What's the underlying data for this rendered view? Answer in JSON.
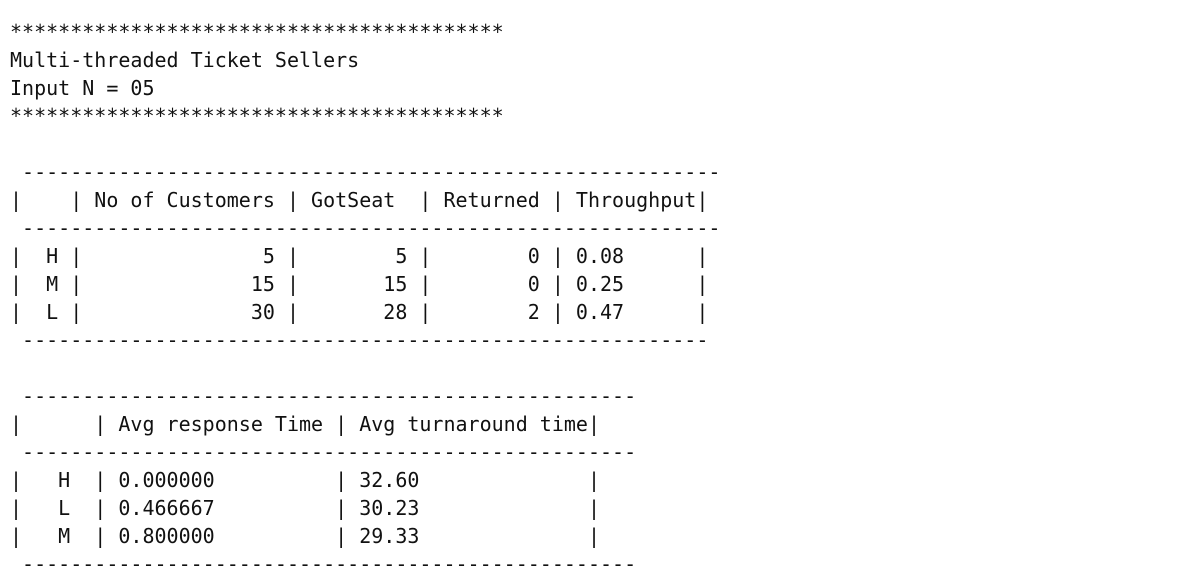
{
  "terminal": {
    "lines": [
      "*****************************************",
      "Multi-threaded Ticket Sellers",
      "Input N = 05",
      "*****************************************",
      "",
      " ----------------------------------------------------------",
      "|    | No of Customers | GotSeat  | Returned | Throughput|",
      " ----------------------------------------------------------",
      "|  H |               5 |        5 |        0 | 0.08      |",
      "|  M |              15 |       15 |        0 | 0.25      |",
      "|  L |              30 |       28 |        2 | 0.47      |",
      " ---------------------------------------------------------",
      "",
      " ---------------------------------------------------",
      "|      | Avg response Time | Avg turnaround time|",
      " ---------------------------------------------------",
      "|   H  | 0.000000          | 32.60              |",
      "|   L  | 0.466667          | 30.23              |",
      "|   M  | 0.800000          | 29.33              |",
      " ---------------------------------------------------"
    ]
  }
}
